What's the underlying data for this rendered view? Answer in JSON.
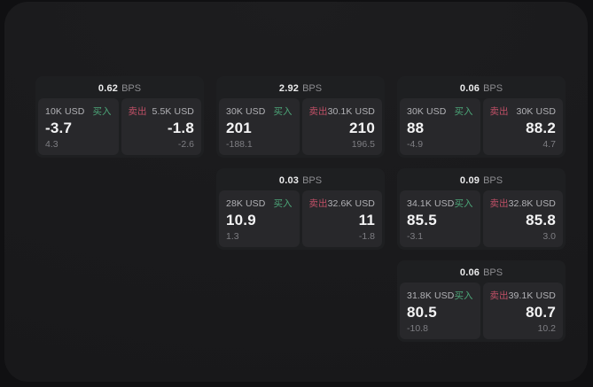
{
  "app": {
    "background_color": "#101012",
    "panel_color": "#1a1a1c",
    "card_color": "#1e1f21",
    "subpanel_color": "#28282b"
  },
  "colors": {
    "buy_accent": "#4ca678",
    "sell_accent": "#bf4f66",
    "primary_text": "#f3f3f4",
    "secondary_text": "#b2b2b6",
    "muted_text": "#7e7e83"
  },
  "labels": {
    "bps": "BPS",
    "buy": "买入",
    "sell": "卖出"
  },
  "cards": [
    {
      "col": 1,
      "row": 1,
      "bps": "0.62",
      "buy": {
        "amount": "10K USD",
        "price": "-3.7",
        "delta": "4.3"
      },
      "sell": {
        "amount": "5.5K USD",
        "price": "-1.8",
        "delta": "-2.6"
      }
    },
    {
      "col": 2,
      "row": 1,
      "bps": "2.92",
      "buy": {
        "amount": "30K USD",
        "price": "201",
        "delta": "-188.1"
      },
      "sell": {
        "amount": "30.1K USD",
        "price": "210",
        "delta": "196.5"
      }
    },
    {
      "col": 3,
      "row": 1,
      "bps": "0.06",
      "buy": {
        "amount": "30K USD",
        "price": "88",
        "delta": "-4.9"
      },
      "sell": {
        "amount": "30K USD",
        "price": "88.2",
        "delta": "4.7"
      }
    },
    {
      "col": 2,
      "row": 2,
      "bps": "0.03",
      "buy": {
        "amount": "28K USD",
        "price": "10.9",
        "delta": "1.3"
      },
      "sell": {
        "amount": "32.6K USD",
        "price": "11",
        "delta": "-1.8"
      }
    },
    {
      "col": 3,
      "row": 2,
      "bps": "0.09",
      "buy": {
        "amount": "34.1K USD",
        "price": "85.5",
        "delta": "-3.1"
      },
      "sell": {
        "amount": "32.8K USD",
        "price": "85.8",
        "delta": "3.0"
      }
    },
    {
      "col": 3,
      "row": 3,
      "bps": "0.06",
      "buy": {
        "amount": "31.8K USD",
        "price": "80.5",
        "delta": "-10.8"
      },
      "sell": {
        "amount": "39.1K USD",
        "price": "80.7",
        "delta": "10.2"
      }
    }
  ]
}
